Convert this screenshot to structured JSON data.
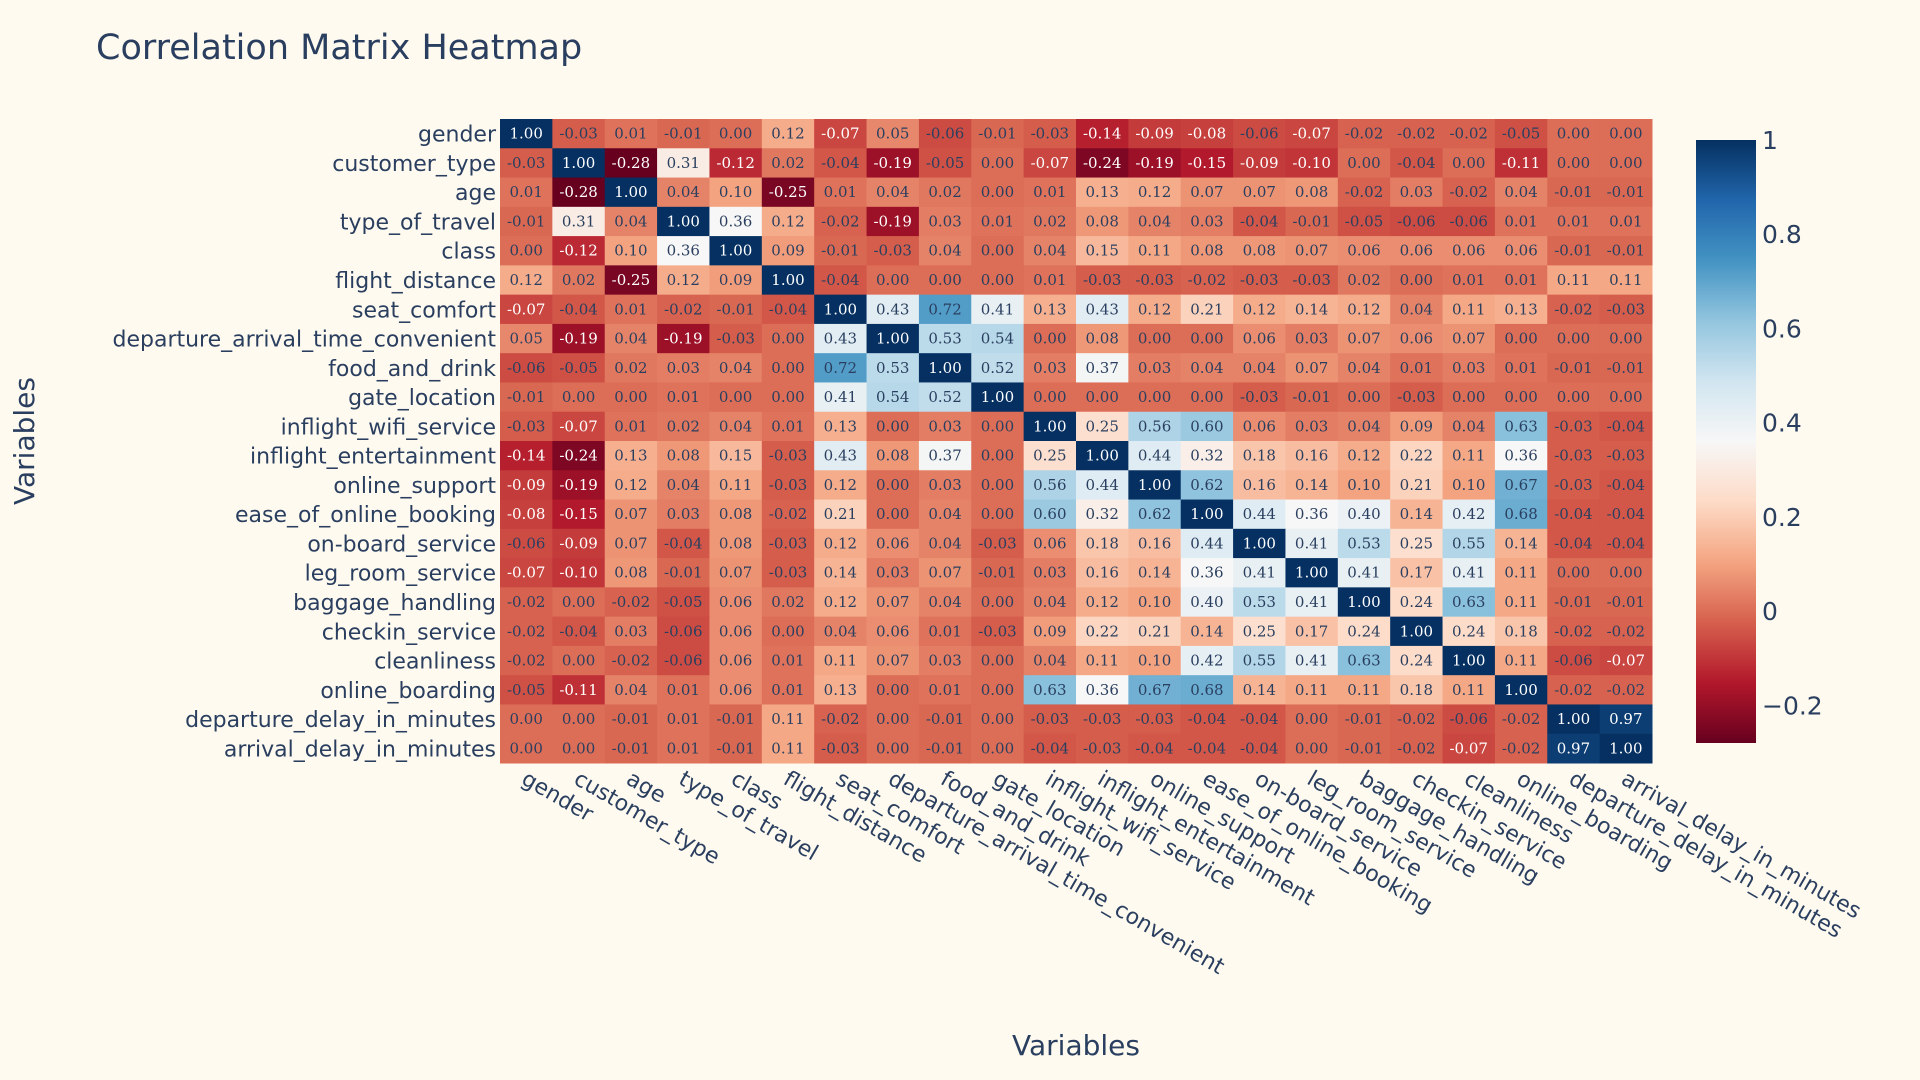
{
  "chart_data": {
    "type": "heatmap",
    "title": "Correlation Matrix Heatmap",
    "xlabel": "Variables",
    "ylabel": "Variables",
    "variables": [
      "gender",
      "customer_type",
      "age",
      "type_of_travel",
      "class",
      "flight_distance",
      "seat_comfort",
      "departure_arrival_time_convenient",
      "food_and_drink",
      "gate_location",
      "inflight_wifi_service",
      "inflight_entertainment",
      "online_support",
      "ease_of_online_booking",
      "on-board_service",
      "leg_room_service",
      "baggage_handling",
      "checkin_service",
      "cleanliness",
      "online_boarding",
      "departure_delay_in_minutes",
      "arrival_delay_in_minutes"
    ],
    "values": [
      [
        1.0,
        -0.03,
        0.01,
        -0.01,
        0.0,
        0.12,
        -0.07,
        0.05,
        -0.06,
        -0.01,
        -0.03,
        -0.14,
        -0.09,
        -0.08,
        -0.06,
        -0.07,
        -0.02,
        -0.02,
        -0.02,
        -0.05,
        0.0,
        0.0
      ],
      [
        -0.03,
        1.0,
        -0.28,
        0.31,
        -0.12,
        0.02,
        -0.04,
        -0.19,
        -0.05,
        0.0,
        -0.07,
        -0.24,
        -0.19,
        -0.15,
        -0.09,
        -0.1,
        0.0,
        -0.04,
        0.0,
        -0.11,
        0.0,
        0.0
      ],
      [
        0.01,
        -0.28,
        1.0,
        0.04,
        0.1,
        -0.25,
        0.01,
        0.04,
        0.02,
        0.0,
        0.01,
        0.13,
        0.12,
        0.07,
        0.07,
        0.08,
        -0.02,
        0.03,
        -0.02,
        0.04,
        -0.01,
        -0.01
      ],
      [
        -0.01,
        0.31,
        0.04,
        1.0,
        0.36,
        0.12,
        -0.02,
        -0.19,
        0.03,
        0.01,
        0.02,
        0.08,
        0.04,
        0.03,
        -0.04,
        -0.01,
        -0.05,
        -0.06,
        -0.06,
        0.01,
        0.01,
        0.01
      ],
      [
        0.0,
        -0.12,
        0.1,
        0.36,
        1.0,
        0.09,
        -0.01,
        -0.03,
        0.04,
        0.0,
        0.04,
        0.15,
        0.11,
        0.08,
        0.08,
        0.07,
        0.06,
        0.06,
        0.06,
        0.06,
        -0.01,
        -0.01
      ],
      [
        0.12,
        0.02,
        -0.25,
        0.12,
        0.09,
        1.0,
        -0.04,
        0.0,
        0.0,
        0.0,
        0.01,
        -0.03,
        -0.03,
        -0.02,
        -0.03,
        -0.03,
        0.02,
        0.0,
        0.01,
        0.01,
        0.11,
        0.11
      ],
      [
        -0.07,
        -0.04,
        0.01,
        -0.02,
        -0.01,
        -0.04,
        1.0,
        0.43,
        0.72,
        0.41,
        0.13,
        0.43,
        0.12,
        0.21,
        0.12,
        0.14,
        0.12,
        0.04,
        0.11,
        0.13,
        -0.02,
        -0.03
      ],
      [
        0.05,
        -0.19,
        0.04,
        -0.19,
        -0.03,
        0.0,
        0.43,
        1.0,
        0.53,
        0.54,
        0.0,
        0.08,
        0.0,
        0.0,
        0.06,
        0.03,
        0.07,
        0.06,
        0.07,
        0.0,
        0.0,
        0.0
      ],
      [
        -0.06,
        -0.05,
        0.02,
        0.03,
        0.04,
        0.0,
        0.72,
        0.53,
        1.0,
        0.52,
        0.03,
        0.37,
        0.03,
        0.04,
        0.04,
        0.07,
        0.04,
        0.01,
        0.03,
        0.01,
        -0.01,
        -0.01
      ],
      [
        -0.01,
        0.0,
        0.0,
        0.01,
        0.0,
        0.0,
        0.41,
        0.54,
        0.52,
        1.0,
        0.0,
        0.0,
        0.0,
        0.0,
        -0.03,
        -0.01,
        0.0,
        -0.03,
        0.0,
        0.0,
        0.0,
        0.0
      ],
      [
        -0.03,
        -0.07,
        0.01,
        0.02,
        0.04,
        0.01,
        0.13,
        0.0,
        0.03,
        0.0,
        1.0,
        0.25,
        0.56,
        0.6,
        0.06,
        0.03,
        0.04,
        0.09,
        0.04,
        0.63,
        -0.03,
        -0.04
      ],
      [
        -0.14,
        -0.24,
        0.13,
        0.08,
        0.15,
        -0.03,
        0.43,
        0.08,
        0.37,
        0.0,
        0.25,
        1.0,
        0.44,
        0.32,
        0.18,
        0.16,
        0.12,
        0.22,
        0.11,
        0.36,
        -0.03,
        -0.03
      ],
      [
        -0.09,
        -0.19,
        0.12,
        0.04,
        0.11,
        -0.03,
        0.12,
        0.0,
        0.03,
        0.0,
        0.56,
        0.44,
        1.0,
        0.62,
        0.16,
        0.14,
        0.1,
        0.21,
        0.1,
        0.67,
        -0.03,
        -0.04
      ],
      [
        -0.08,
        -0.15,
        0.07,
        0.03,
        0.08,
        -0.02,
        0.21,
        0.0,
        0.04,
        0.0,
        0.6,
        0.32,
        0.62,
        1.0,
        0.44,
        0.36,
        0.4,
        0.14,
        0.42,
        0.68,
        -0.04,
        -0.04
      ],
      [
        -0.06,
        -0.09,
        0.07,
        -0.04,
        0.08,
        -0.03,
        0.12,
        0.06,
        0.04,
        -0.03,
        0.06,
        0.18,
        0.16,
        0.44,
        1.0,
        0.41,
        0.53,
        0.25,
        0.55,
        0.14,
        -0.04,
        -0.04
      ],
      [
        -0.07,
        -0.1,
        0.08,
        -0.01,
        0.07,
        -0.03,
        0.14,
        0.03,
        0.07,
        -0.01,
        0.03,
        0.16,
        0.14,
        0.36,
        0.41,
        1.0,
        0.41,
        0.17,
        0.41,
        0.11,
        0.0,
        0.0
      ],
      [
        -0.02,
        0.0,
        -0.02,
        -0.05,
        0.06,
        0.02,
        0.12,
        0.07,
        0.04,
        0.0,
        0.04,
        0.12,
        0.1,
        0.4,
        0.53,
        0.41,
        1.0,
        0.24,
        0.63,
        0.11,
        -0.01,
        -0.01
      ],
      [
        -0.02,
        -0.04,
        0.03,
        -0.06,
        0.06,
        0.0,
        0.04,
        0.06,
        0.01,
        -0.03,
        0.09,
        0.22,
        0.21,
        0.14,
        0.25,
        0.17,
        0.24,
        1.0,
        0.24,
        0.18,
        -0.02,
        -0.02
      ],
      [
        -0.02,
        0.0,
        -0.02,
        -0.06,
        0.06,
        0.01,
        0.11,
        0.07,
        0.03,
        0.0,
        0.04,
        0.11,
        0.1,
        0.42,
        0.55,
        0.41,
        0.63,
        0.24,
        1.0,
        0.11,
        -0.06,
        -0.07
      ],
      [
        -0.05,
        -0.11,
        0.04,
        0.01,
        0.06,
        0.01,
        0.13,
        0.0,
        0.01,
        0.0,
        0.63,
        0.36,
        0.67,
        0.68,
        0.14,
        0.11,
        0.11,
        0.18,
        0.11,
        1.0,
        -0.02,
        -0.02
      ],
      [
        0.0,
        0.0,
        -0.01,
        0.01,
        -0.01,
        0.11,
        -0.02,
        0.0,
        -0.01,
        0.0,
        -0.03,
        -0.03,
        -0.03,
        -0.04,
        -0.04,
        0.0,
        -0.01,
        -0.02,
        -0.06,
        -0.02,
        1.0,
        0.97
      ],
      [
        0.0,
        0.0,
        -0.01,
        0.01,
        -0.01,
        0.11,
        -0.03,
        0.0,
        -0.01,
        0.0,
        -0.04,
        -0.03,
        -0.04,
        -0.04,
        -0.04,
        0.0,
        -0.01,
        -0.02,
        -0.07,
        -0.02,
        0.97,
        1.0
      ]
    ],
    "zrange": [
      -0.28,
      1.0
    ],
    "colorbar": {
      "ticks": [
        -0.2,
        0,
        0.2,
        0.4,
        0.6,
        0.8,
        1
      ],
      "tick_labels": [
        "−0.2",
        "0",
        "0.2",
        "0.4",
        "0.6",
        "0.8",
        "1"
      ]
    },
    "colorscale": [
      [
        0.0,
        "#67001f"
      ],
      [
        0.1,
        "#b2182b"
      ],
      [
        0.2,
        "#d6604d"
      ],
      [
        0.3,
        "#f4a582"
      ],
      [
        0.4,
        "#fddbc7"
      ],
      [
        0.5,
        "#f7f7f7"
      ],
      [
        0.6,
        "#d1e5f0"
      ],
      [
        0.7,
        "#92c5de"
      ],
      [
        0.8,
        "#4393c3"
      ],
      [
        0.9,
        "#2166ac"
      ],
      [
        1.0,
        "#053061"
      ]
    ],
    "x_tick_rotation_deg": 30
  }
}
